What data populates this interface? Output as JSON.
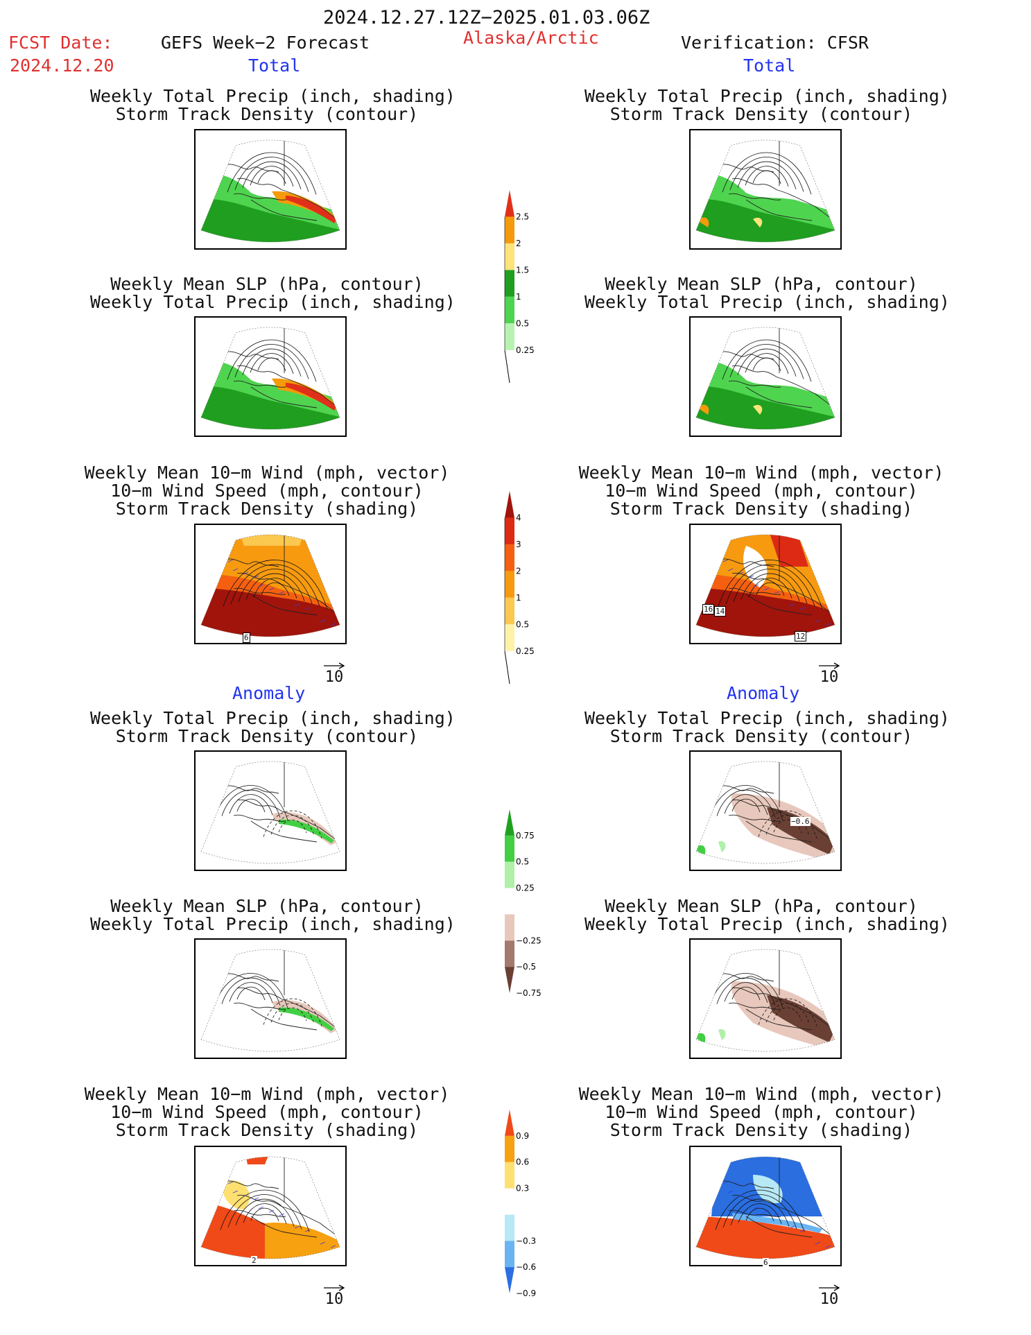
{
  "header": {
    "date_range": "2024.12.27.12Z−2025.01.03.06Z",
    "fcst_label": "FCST Date:",
    "fcst_date": "2024.12.20",
    "forecast_title": "GEFS Week−2 Forecast",
    "region": "Alaska/Arctic",
    "verification": "Verification: CFSR"
  },
  "sections": {
    "total_left": "Total",
    "total_right": "Total",
    "anomaly_left": "Anomaly",
    "anomaly_right": "Anomaly"
  },
  "captions": {
    "precip_track": "Weekly Total Precip (inch, shading)\nStorm Track Density (contour)",
    "slp_precip": "Weekly Mean SLP (hPa, contour)\nWeekly Total Precip (inch, shading)",
    "wind": "Weekly Mean 10−m Wind (mph, vector)\n10−m Wind Speed (mph, contour)\nStorm Track Density (shading)"
  },
  "vector_ref": "10",
  "colorbars": {
    "precip_total": {
      "labels": [
        "2.5",
        "2",
        "1.5",
        "1",
        "0.5",
        "0.25"
      ],
      "colors": [
        "#e0301a",
        "#f59a0a",
        "#fde37a",
        "#1f9e1f",
        "#4fd44f",
        "#b8f2b0"
      ]
    },
    "track_total": {
      "labels": [
        "4",
        "3",
        "2",
        "1",
        "0.5",
        "0.25"
      ],
      "colors": [
        "#a0140c",
        "#dd2a14",
        "#f56010",
        "#f79a10",
        "#fbc850",
        "#fdf3a8"
      ]
    },
    "precip_anom": {
      "labels": [
        "0.75",
        "0.5",
        "0.25",
        "−0.25",
        "−0.5",
        "−0.75"
      ],
      "colors": [
        "#1fa01f",
        "#43cf43",
        "#b0f0a8",
        "#ffffff",
        "#e8c8bc",
        "#a27a6e",
        "#6a4034"
      ]
    },
    "track_anom": {
      "labels": [
        "0.9",
        "0.6",
        "0.3",
        "−0.3",
        "−0.6",
        "−0.9"
      ],
      "colors": [
        "#f04a18",
        "#f7a010",
        "#fde070",
        "#ffffff",
        "#b7e8f5",
        "#6ab4f2",
        "#2a6ee0"
      ]
    }
  },
  "contour_labels": {
    "fcst_wind": [
      "6"
    ],
    "obs_wind": [
      "16",
      "14",
      "12"
    ],
    "obs_anom_precip": [
      "−0.6"
    ],
    "fcst_anom_wind": [
      "2"
    ],
    "obs_anom_wind": [
      "6"
    ]
  }
}
